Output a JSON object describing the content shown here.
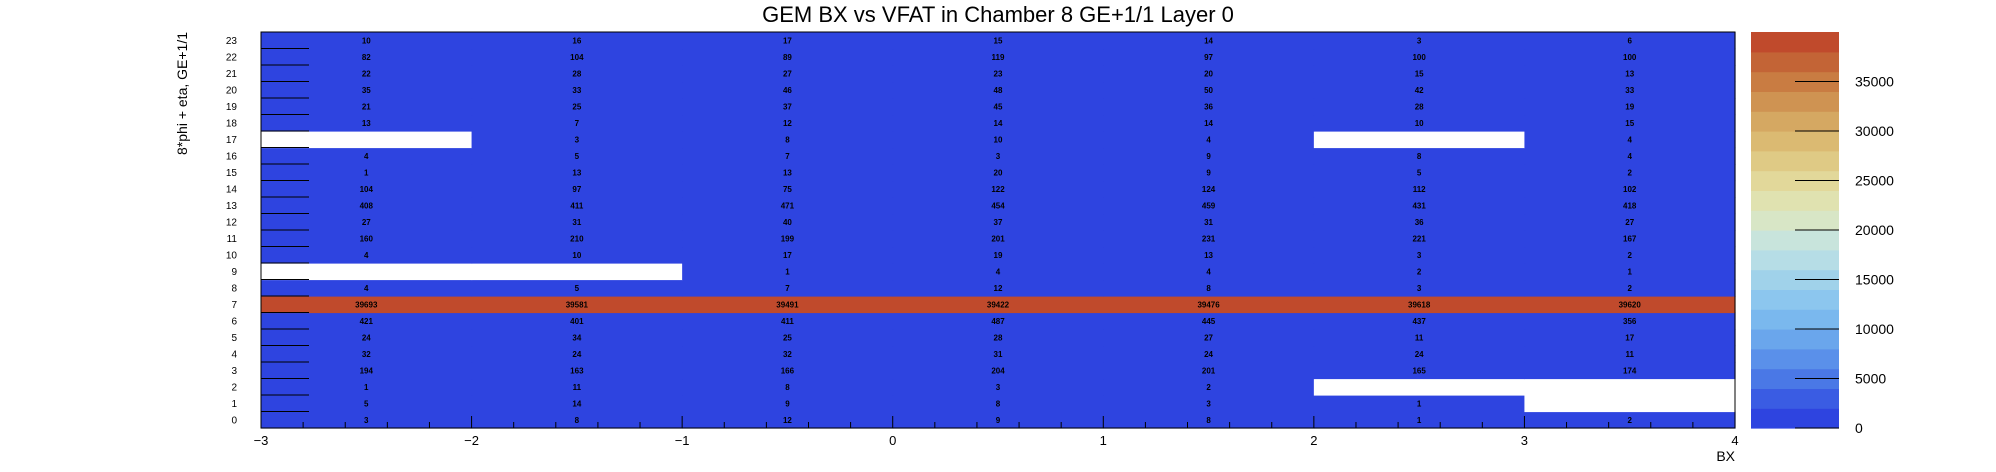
{
  "chart_data": {
    "type": "heatmap",
    "title": "GEM BX vs VFAT in Chamber 8 GE+1/1 Layer 0",
    "xlabel": "BX",
    "ylabel": "8*phi + eta, GE+1/1",
    "x_bin_low": -3,
    "x_bin_width": 1,
    "x_bins": 7,
    "xlim": [
      -3,
      4
    ],
    "x_ticks": [
      -3,
      -2,
      -1,
      0,
      1,
      2,
      3,
      4
    ],
    "x_tick_labels": [
      "−3",
      "−2",
      "−1",
      "0",
      "1",
      "2",
      "3",
      "4"
    ],
    "y_bins": 24,
    "ylim": [
      0,
      24
    ],
    "y_tick_labels": [
      "0",
      "1",
      "2",
      "3",
      "4",
      "5",
      "6",
      "7",
      "8",
      "9",
      "10",
      "11",
      "12",
      "13",
      "14",
      "15",
      "16",
      "17",
      "18",
      "19",
      "20",
      "21",
      "22",
      "23"
    ],
    "zlim": [
      0,
      40000
    ],
    "z_ticks": [
      0,
      5000,
      10000,
      15000,
      20000,
      25000,
      30000,
      35000
    ],
    "z_tick_labels": [
      "0",
      "5000",
      "10000",
      "15000",
      "20000",
      "25000",
      "30000",
      "35000"
    ],
    "palette": [
      "#2e44e0",
      "#3a5ce3",
      "#4a78e6",
      "#5a90ea",
      "#6aa6ec",
      "#7ab8ee",
      "#8cc6ee",
      "#a0d2ea",
      "#b6dde6",
      "#c8e4dc",
      "#d8e6c6",
      "#e0e2b0",
      "#e2d89a",
      "#dfca85",
      "#dbba72",
      "#d5a862",
      "#cf9352",
      "#c97c42",
      "#c36436",
      "#c04a2c"
    ],
    "empty_color": "#ffffff",
    "rows": [
      {
        "y": 0,
        "values": [
          3,
          8,
          12,
          9,
          8,
          1,
          2
        ]
      },
      {
        "y": 1,
        "values": [
          5,
          14,
          9,
          8,
          3,
          1,
          null
        ]
      },
      {
        "y": 2,
        "values": [
          1,
          11,
          8,
          3,
          2,
          null,
          null
        ]
      },
      {
        "y": 3,
        "values": [
          194,
          163,
          166,
          204,
          201,
          165,
          174
        ]
      },
      {
        "y": 4,
        "values": [
          32,
          24,
          32,
          31,
          24,
          24,
          11
        ]
      },
      {
        "y": 5,
        "values": [
          24,
          34,
          25,
          28,
          27,
          11,
          17
        ]
      },
      {
        "y": 6,
        "values": [
          421,
          401,
          411,
          487,
          445,
          437,
          356
        ]
      },
      {
        "y": 7,
        "values": [
          39693,
          39581,
          39491,
          39422,
          39476,
          39618,
          39620
        ]
      },
      {
        "y": 8,
        "values": [
          4,
          5,
          7,
          12,
          8,
          3,
          2
        ]
      },
      {
        "y": 9,
        "values": [
          null,
          null,
          1,
          4,
          4,
          2,
          1
        ]
      },
      {
        "y": 10,
        "values": [
          4,
          10,
          17,
          19,
          13,
          3,
          2
        ]
      },
      {
        "y": 11,
        "values": [
          160,
          210,
          199,
          201,
          231,
          221,
          167
        ]
      },
      {
        "y": 12,
        "values": [
          27,
          31,
          40,
          37,
          31,
          36,
          27
        ]
      },
      {
        "y": 13,
        "values": [
          408,
          411,
          471,
          454,
          459,
          431,
          418
        ]
      },
      {
        "y": 14,
        "values": [
          104,
          97,
          75,
          122,
          124,
          112,
          102
        ]
      },
      {
        "y": 15,
        "values": [
          1,
          13,
          13,
          20,
          9,
          5,
          2
        ]
      },
      {
        "y": 16,
        "values": [
          4,
          5,
          7,
          3,
          9,
          8,
          4
        ]
      },
      {
        "y": 17,
        "values": [
          null,
          3,
          8,
          10,
          4,
          null,
          4
        ]
      },
      {
        "y": 18,
        "values": [
          13,
          7,
          12,
          14,
          14,
          10,
          15
        ]
      },
      {
        "y": 19,
        "values": [
          21,
          25,
          37,
          45,
          36,
          28,
          19
        ]
      },
      {
        "y": 20,
        "values": [
          35,
          33,
          46,
          48,
          50,
          42,
          33
        ]
      },
      {
        "y": 21,
        "values": [
          22,
          28,
          27,
          23,
          20,
          15,
          13
        ]
      },
      {
        "y": 22,
        "values": [
          82,
          104,
          89,
          119,
          97,
          100,
          100
        ]
      },
      {
        "y": 23,
        "values": [
          10,
          16,
          17,
          15,
          14,
          3,
          6
        ]
      }
    ]
  }
}
